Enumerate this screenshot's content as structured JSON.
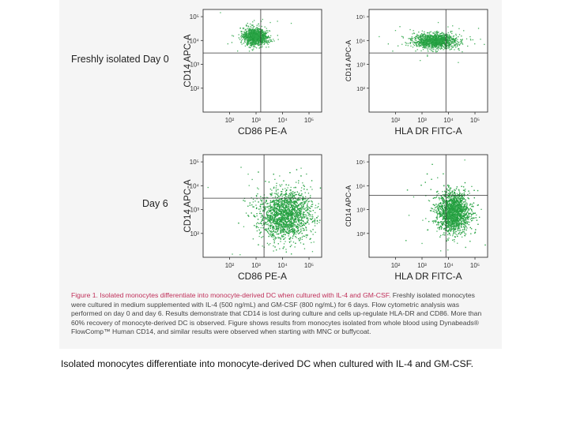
{
  "row_labels": [
    "Freshly isolated Day 0",
    "Day 6"
  ],
  "figure_caption": {
    "lead": "Figure 1. Isolated monocytes differentiate into monocyte-derived DC when cultured with IL-4 and GM-CSF.",
    "body": " Freshly isolated monocytes were cultured in medium supplemented with IL-4 (500 ng/mL) and GM-CSF (800 ng/mL) for 6 days. Flow cytometric analysis was performed on day 0 and day 6. Results demonstrate that CD14 is lost during culture and cells up-regulate HLA-DR and CD86. More than 60% recovery of monocyte-derived DC is observed. Figure shows results from monocytes isolated from whole blood using Dynabeads® FlowComp™ Human CD14, and similar results were observed when starting with MNC or buffycoat."
  },
  "page_caption": "Isolated monocytes differentiate into monocyte-derived DC when cultured with IL-4 and GM-CSF.",
  "colors": {
    "dots": "#2fa84a",
    "dots_dense": "#1f9b3b",
    "caption_lead": "#c0305a"
  },
  "chart_data": [
    {
      "type": "scatter",
      "title": "",
      "row": "Freshly isolated Day 0",
      "xlabel": "CD86 PE-A",
      "ylabel": "CD14 APC-A",
      "xscale": "log",
      "yscale": "log",
      "x_ticks": [
        "10²",
        "10³",
        "10⁴",
        "10⁵"
      ],
      "y_ticks": [
        "10²",
        "10³",
        "10⁴",
        "10⁵"
      ],
      "xlim": [
        10,
        300000
      ],
      "ylim": [
        10,
        200000
      ],
      "gate": {
        "x": 1500,
        "y": 3000
      },
      "series": [
        {
          "clusters": [
            {
              "x_center": 900,
              "y_center": 15000,
              "x_spread_decades": 0.22,
              "y_spread_decades": 0.18,
              "n": 1200
            }
          ]
        }
      ]
    },
    {
      "type": "scatter",
      "title": "",
      "row": "Freshly isolated Day 0",
      "xlabel": "HLA DR FITC-A",
      "ylabel": "CD14 APC-A",
      "xscale": "log",
      "yscale": "log",
      "x_ticks": [
        "10²",
        "10³",
        "10⁴",
        "10⁵"
      ],
      "y_ticks": [
        "10²",
        "10³",
        "10⁴",
        "10⁵"
      ],
      "xlim": [
        10,
        300000
      ],
      "ylim": [
        10,
        200000
      ],
      "gate": {
        "x": 8000,
        "y": 3000
      },
      "series": [
        {
          "clusters": [
            {
              "x_center": 3000,
              "y_center": 10000,
              "x_spread_decades": 0.4,
              "y_spread_decades": 0.15,
              "n": 1400
            }
          ]
        }
      ]
    },
    {
      "type": "scatter",
      "title": "",
      "row": "Day 6",
      "xlabel": "CD86 PE-A",
      "ylabel": "CD14 APC-A",
      "xscale": "log",
      "yscale": "log",
      "x_ticks": [
        "10²",
        "10³",
        "10⁴",
        "10⁵"
      ],
      "y_ticks": [
        "10²",
        "10³",
        "10⁴",
        "10⁵"
      ],
      "xlim": [
        10,
        300000
      ],
      "ylim": [
        10,
        200000
      ],
      "gate": {
        "x": 2000,
        "y": 3000
      },
      "series": [
        {
          "clusters": [
            {
              "x_center": 12000,
              "y_center": 600,
              "x_spread_decades": 0.5,
              "y_spread_decades": 0.5,
              "n": 2600
            }
          ]
        }
      ]
    },
    {
      "type": "scatter",
      "title": "",
      "row": "Day 6",
      "xlabel": "HLA DR FITC-A",
      "ylabel": "CD14 APC-A",
      "xscale": "log",
      "yscale": "log",
      "x_ticks": [
        "10²",
        "10³",
        "10⁴",
        "10⁵"
      ],
      "y_ticks": [
        "10²",
        "10³",
        "10⁴",
        "10⁵"
      ],
      "xlim": [
        10,
        300000
      ],
      "ylim": [
        10,
        200000
      ],
      "gate": {
        "x": 8000,
        "y": 4000
      },
      "series": [
        {
          "clusters": [
            {
              "x_center": 15000,
              "y_center": 800,
              "x_spread_decades": 0.3,
              "y_spread_decades": 0.4,
              "n": 2600
            }
          ]
        }
      ]
    }
  ]
}
